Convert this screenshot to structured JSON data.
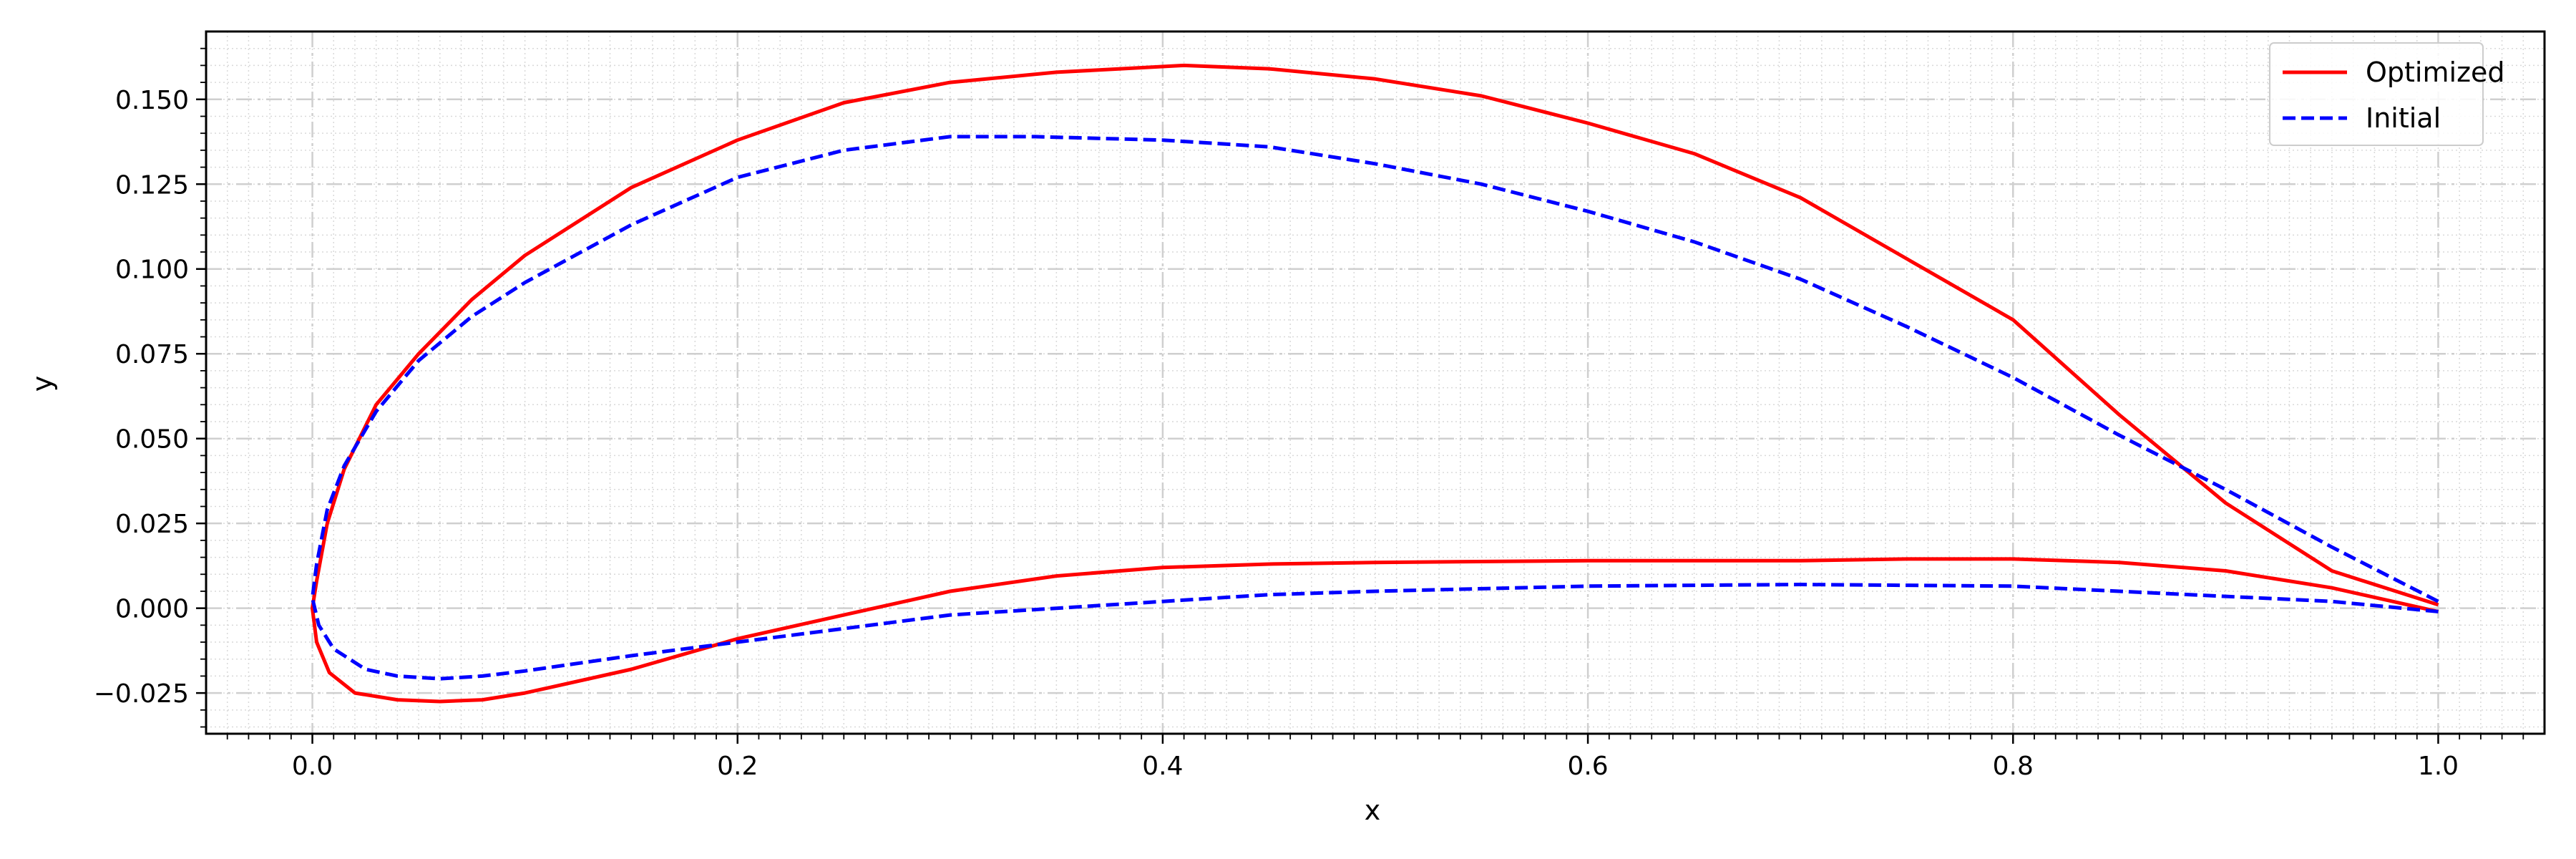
{
  "chart_data": {
    "type": "line",
    "xlabel": "x",
    "ylabel": "y",
    "xlim": [
      -0.05,
      1.05
    ],
    "ylim": [
      -0.037,
      0.17
    ],
    "grid": true,
    "legend_position": "top-right",
    "x_ticks": [
      0.0,
      0.2,
      0.4,
      0.6,
      0.8,
      1.0
    ],
    "x_tick_labels": [
      "0.0",
      "0.2",
      "0.4",
      "0.6",
      "0.8",
      "1.0"
    ],
    "y_ticks": [
      -0.025,
      0.0,
      0.025,
      0.05,
      0.075,
      0.1,
      0.125,
      0.15
    ],
    "y_tick_labels": [
      "−0.025",
      "0.000",
      "0.025",
      "0.050",
      "0.075",
      "0.100",
      "0.125",
      "0.150"
    ],
    "series": [
      {
        "name": "Optimized",
        "color": "#ff0000",
        "linestyle": "solid",
        "points": [
          [
            1.0,
            0.001
          ],
          [
            0.95,
            0.011
          ],
          [
            0.9,
            0.031
          ],
          [
            0.85,
            0.057
          ],
          [
            0.8,
            0.085
          ],
          [
            0.75,
            0.103
          ],
          [
            0.7,
            0.121
          ],
          [
            0.65,
            0.134
          ],
          [
            0.6,
            0.143
          ],
          [
            0.55,
            0.151
          ],
          [
            0.5,
            0.156
          ],
          [
            0.45,
            0.159
          ],
          [
            0.41,
            0.16
          ],
          [
            0.35,
            0.158
          ],
          [
            0.3,
            0.155
          ],
          [
            0.25,
            0.149
          ],
          [
            0.2,
            0.138
          ],
          [
            0.15,
            0.124
          ],
          [
            0.1,
            0.104
          ],
          [
            0.075,
            0.091
          ],
          [
            0.05,
            0.075
          ],
          [
            0.03,
            0.06
          ],
          [
            0.015,
            0.041
          ],
          [
            0.007,
            0.025
          ],
          [
            0.002,
            0.008
          ],
          [
            0.0,
            0.0
          ],
          [
            0.002,
            -0.01
          ],
          [
            0.008,
            -0.019
          ],
          [
            0.02,
            -0.025
          ],
          [
            0.04,
            -0.027
          ],
          [
            0.06,
            -0.0275
          ],
          [
            0.08,
            -0.027
          ],
          [
            0.1,
            -0.025
          ],
          [
            0.15,
            -0.018
          ],
          [
            0.2,
            -0.009
          ],
          [
            0.25,
            -0.002
          ],
          [
            0.3,
            0.005
          ],
          [
            0.35,
            0.0095
          ],
          [
            0.4,
            0.012
          ],
          [
            0.45,
            0.013
          ],
          [
            0.5,
            0.0135
          ],
          [
            0.6,
            0.014
          ],
          [
            0.7,
            0.014
          ],
          [
            0.75,
            0.0145
          ],
          [
            0.8,
            0.0145
          ],
          [
            0.85,
            0.0135
          ],
          [
            0.9,
            0.011
          ],
          [
            0.95,
            0.006
          ],
          [
            1.0,
            -0.001
          ]
        ]
      },
      {
        "name": "Initial",
        "color": "#0000ff",
        "linestyle": "dashed",
        "points": [
          [
            1.0,
            0.002
          ],
          [
            0.95,
            0.018
          ],
          [
            0.9,
            0.035
          ],
          [
            0.85,
            0.051
          ],
          [
            0.8,
            0.068
          ],
          [
            0.75,
            0.083
          ],
          [
            0.7,
            0.097
          ],
          [
            0.65,
            0.108
          ],
          [
            0.6,
            0.117
          ],
          [
            0.55,
            0.125
          ],
          [
            0.5,
            0.131
          ],
          [
            0.45,
            0.136
          ],
          [
            0.4,
            0.138
          ],
          [
            0.34,
            0.139
          ],
          [
            0.3,
            0.139
          ],
          [
            0.25,
            0.135
          ],
          [
            0.2,
            0.127
          ],
          [
            0.15,
            0.113
          ],
          [
            0.1,
            0.096
          ],
          [
            0.075,
            0.086
          ],
          [
            0.05,
            0.073
          ],
          [
            0.03,
            0.058
          ],
          [
            0.015,
            0.042
          ],
          [
            0.007,
            0.029
          ],
          [
            0.002,
            0.013
          ],
          [
            0.0,
            0.003
          ],
          [
            0.003,
            -0.005
          ],
          [
            0.01,
            -0.012
          ],
          [
            0.025,
            -0.018
          ],
          [
            0.04,
            -0.02
          ],
          [
            0.06,
            -0.0208
          ],
          [
            0.08,
            -0.02
          ],
          [
            0.1,
            -0.0185
          ],
          [
            0.15,
            -0.014
          ],
          [
            0.2,
            -0.01
          ],
          [
            0.25,
            -0.006
          ],
          [
            0.3,
            -0.002
          ],
          [
            0.35,
            0.0
          ],
          [
            0.4,
            0.002
          ],
          [
            0.45,
            0.004
          ],
          [
            0.5,
            0.005
          ],
          [
            0.6,
            0.0065
          ],
          [
            0.7,
            0.007
          ],
          [
            0.8,
            0.0065
          ],
          [
            0.85,
            0.005
          ],
          [
            0.9,
            0.0035
          ],
          [
            0.95,
            0.002
          ],
          [
            1.0,
            -0.001
          ]
        ]
      }
    ]
  }
}
